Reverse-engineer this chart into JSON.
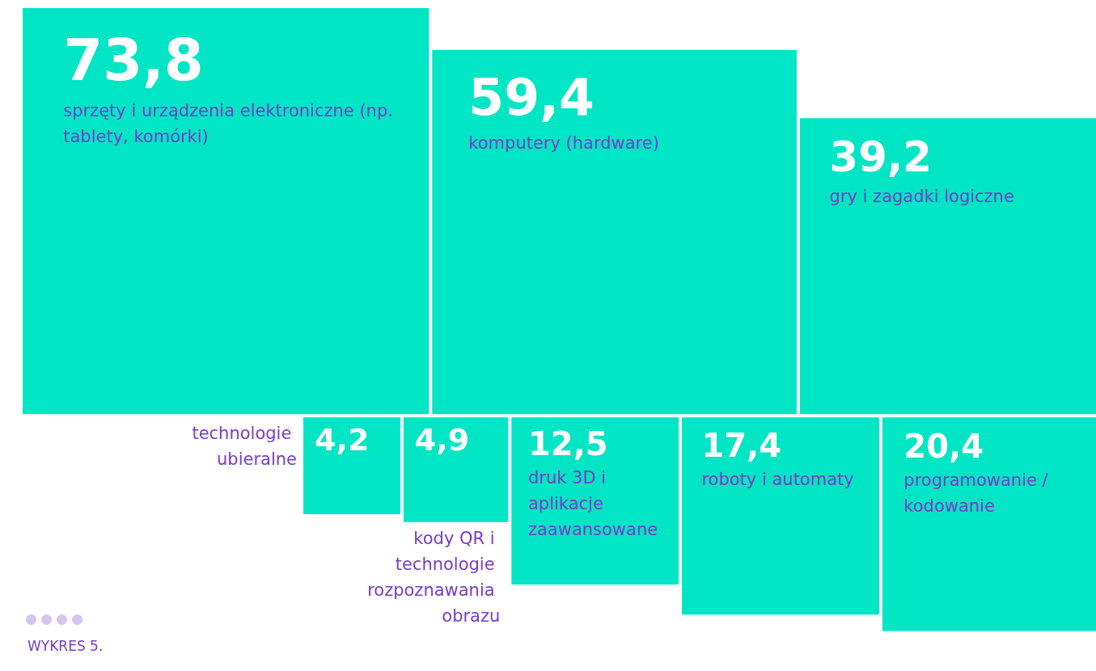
{
  "chart_data": {
    "type": "other",
    "categories": [
      "sprzęty i urządzenia elektroniczne (np. tablety, komórki)",
      "komputery (hardware)",
      "gry i zagadki logiczne",
      "technologie ubieralne",
      "kody QR i technologie rozpoznawania obrazu",
      "druk 3D i aplikacje zaawansowane",
      "roboty i automaty",
      "programowanie / kodowanie"
    ],
    "values": [
      73.8,
      59.4,
      39.2,
      4.2,
      4.9,
      12.5,
      17.4,
      20.4
    ],
    "value_labels": [
      "73,8",
      "59,4",
      "39,2",
      "4,2",
      "4,9",
      "12,5",
      "17,4",
      "20,4"
    ],
    "color": "#00e5c4",
    "annotations": [
      "WYKRES 5."
    ]
  }
}
